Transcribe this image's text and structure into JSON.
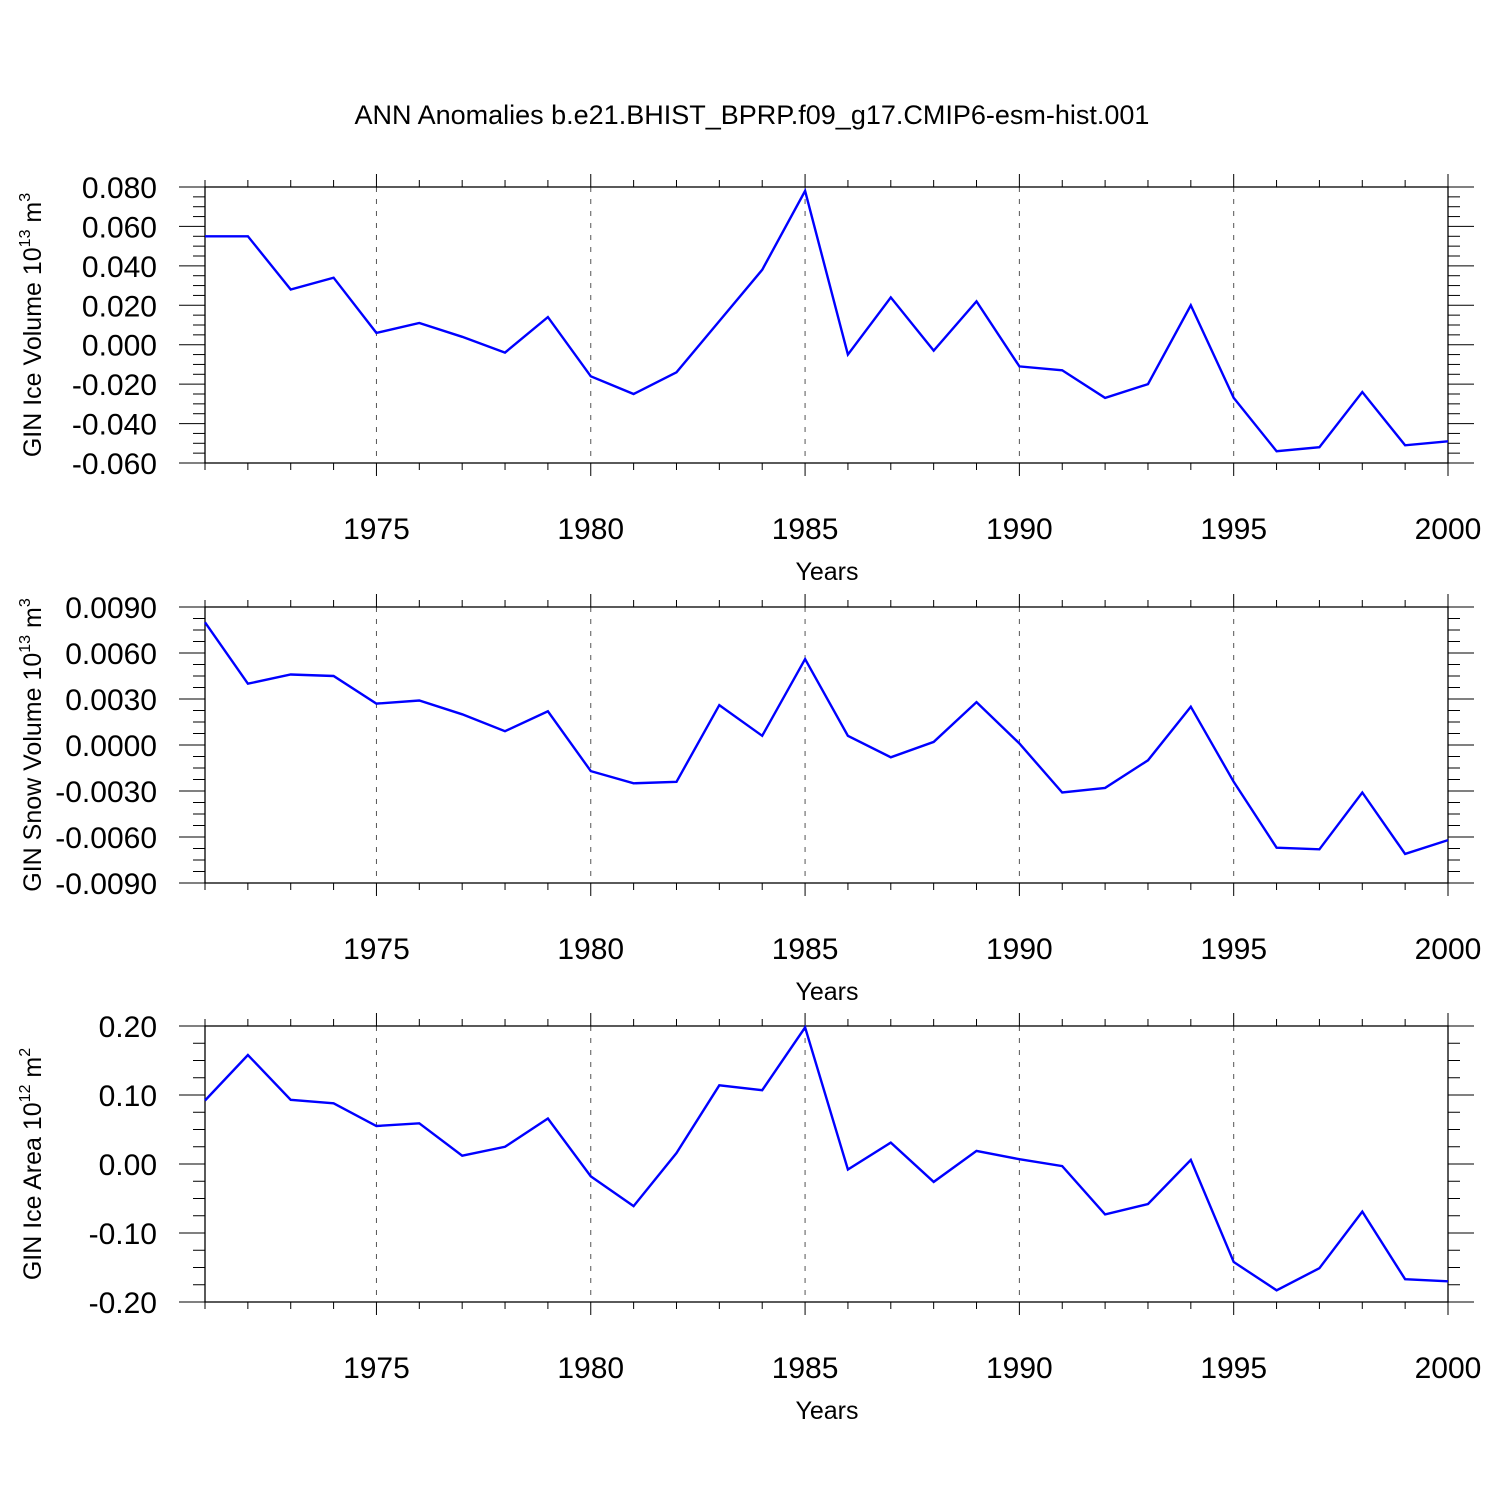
{
  "title": "ANN Anomalies b.e21.BHIST_BPRP.f09_g17.CMIP6-esm-hist.001",
  "chart_data": [
    {
      "type": "line",
      "ylabel": "GIN Ice Volume 10",
      "ylabel_exp": "13",
      "ylabel_unit": "m",
      "ylabel_unit_exp": "3",
      "xlabel": "Years",
      "xlim": [
        1971,
        2000
      ],
      "ylim": [
        -0.06,
        0.08
      ],
      "yticks": [
        0.08,
        0.06,
        0.04,
        0.02,
        0.0,
        -0.02,
        -0.04,
        -0.06
      ],
      "ytick_labels": [
        "0.080",
        "0.060",
        "0.040",
        "0.020",
        "0.000",
        "-0.020",
        "-0.040",
        "-0.060"
      ],
      "xticks": [
        1975,
        1980,
        1985,
        1990,
        1995,
        2000
      ],
      "xtick_labels": [
        "1975",
        "1980",
        "1985",
        "1990",
        "1995",
        "2000"
      ],
      "x": [
        1971,
        1972,
        1973,
        1974,
        1975,
        1976,
        1977,
        1978,
        1979,
        1980,
        1981,
        1982,
        1983,
        1984,
        1985,
        1986,
        1987,
        1988,
        1989,
        1990,
        1991,
        1992,
        1993,
        1994,
        1995,
        1996,
        1997,
        1998,
        1999,
        2000
      ],
      "series": [
        {
          "name": "GIN Ice Volume",
          "color": "#0000ff",
          "values": [
            0.055,
            0.055,
            0.028,
            0.034,
            0.006,
            0.011,
            0.004,
            -0.004,
            0.014,
            -0.016,
            -0.025,
            -0.014,
            0.012,
            0.038,
            0.078,
            -0.005,
            0.024,
            -0.003,
            0.022,
            -0.011,
            -0.013,
            -0.027,
            -0.02,
            0.02,
            -0.027,
            -0.054,
            -0.052,
            -0.024,
            -0.051,
            -0.049
          ]
        }
      ]
    },
    {
      "type": "line",
      "ylabel": "GIN Snow Volume 10",
      "ylabel_exp": "13",
      "ylabel_unit": "m",
      "ylabel_unit_exp": "3",
      "xlabel": "Years",
      "xlim": [
        1971,
        2000
      ],
      "ylim": [
        -0.009,
        0.009
      ],
      "yticks": [
        0.009,
        0.006,
        0.003,
        0.0,
        -0.003,
        -0.006,
        -0.009
      ],
      "ytick_labels": [
        "0.0090",
        "0.0060",
        "0.0030",
        "0.0000",
        "-0.0030",
        "-0.0060",
        "-0.0090"
      ],
      "xticks": [
        1975,
        1980,
        1985,
        1990,
        1995,
        2000
      ],
      "xtick_labels": [
        "1975",
        "1980",
        "1985",
        "1990",
        "1995",
        "2000"
      ],
      "x": [
        1971,
        1972,
        1973,
        1974,
        1975,
        1976,
        1977,
        1978,
        1979,
        1980,
        1981,
        1982,
        1983,
        1984,
        1985,
        1986,
        1987,
        1988,
        1989,
        1990,
        1991,
        1992,
        1993,
        1994,
        1995,
        1996,
        1997,
        1998,
        1999,
        2000
      ],
      "series": [
        {
          "name": "GIN Snow Volume",
          "color": "#0000ff",
          "values": [
            0.008,
            0.004,
            0.0046,
            0.0045,
            0.0027,
            0.0029,
            0.002,
            0.0009,
            0.0022,
            -0.0017,
            -0.0025,
            -0.0024,
            0.0026,
            0.0006,
            0.0056,
            0.0006,
            -0.0008,
            0.0002,
            0.0028,
            0.0001,
            -0.0031,
            -0.0028,
            -0.001,
            0.0025,
            -0.0024,
            -0.0067,
            -0.0068,
            -0.0031,
            -0.0071,
            -0.0062
          ]
        }
      ]
    },
    {
      "type": "line",
      "ylabel": "GIN Ice Area 10",
      "ylabel_exp": "12",
      "ylabel_unit": "m",
      "ylabel_unit_exp": "2",
      "xlabel": "Years",
      "xlim": [
        1971,
        2000
      ],
      "ylim": [
        -0.2,
        0.2
      ],
      "yticks": [
        0.2,
        0.1,
        0.0,
        -0.1,
        -0.2
      ],
      "ytick_labels": [
        "0.20",
        "0.10",
        "0.00",
        "-0.10",
        "-0.20"
      ],
      "xticks": [
        1975,
        1980,
        1985,
        1990,
        1995,
        2000
      ],
      "xtick_labels": [
        "1975",
        "1980",
        "1985",
        "1990",
        "1995",
        "2000"
      ],
      "x": [
        1971,
        1972,
        1973,
        1974,
        1975,
        1976,
        1977,
        1978,
        1979,
        1980,
        1981,
        1982,
        1983,
        1984,
        1985,
        1986,
        1987,
        1988,
        1989,
        1990,
        1991,
        1992,
        1993,
        1994,
        1995,
        1996,
        1997,
        1998,
        1999,
        2000
      ],
      "series": [
        {
          "name": "GIN Ice Area",
          "color": "#0000ff",
          "values": [
            0.092,
            0.158,
            0.093,
            0.088,
            0.055,
            0.059,
            0.012,
            0.025,
            0.066,
            -0.018,
            -0.061,
            0.016,
            0.114,
            0.107,
            0.198,
            -0.008,
            0.031,
            -0.026,
            0.019,
            0.007,
            -0.003,
            -0.073,
            -0.058,
            0.006,
            -0.142,
            -0.183,
            -0.151,
            -0.069,
            -0.167,
            -0.17
          ]
        }
      ]
    }
  ]
}
